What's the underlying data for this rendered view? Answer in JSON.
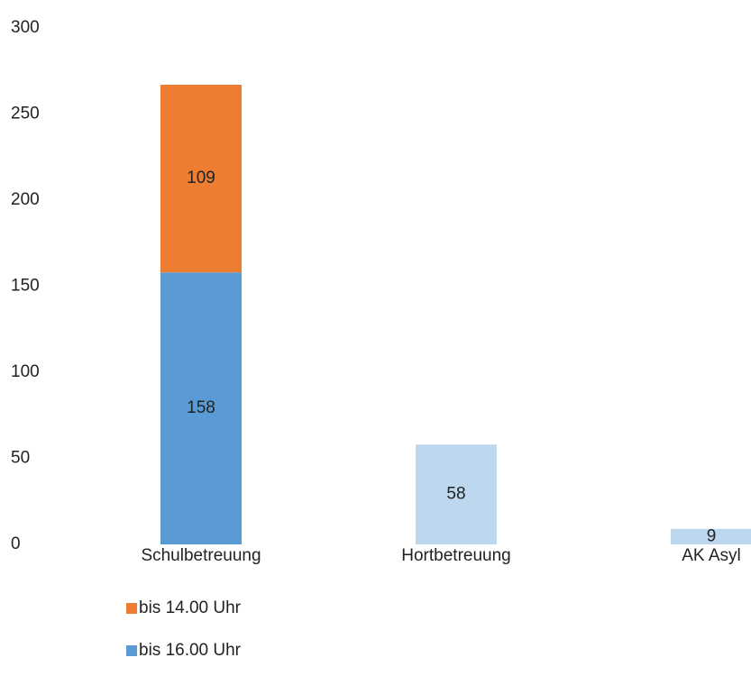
{
  "chart_data": {
    "type": "stacked_bar",
    "categories": [
      "Schulbetreuung",
      "Hortbetreuung",
      "AK Asyl"
    ],
    "series": [
      {
        "name": "bis 16.00 Uhr",
        "color": "#5b9bd5",
        "values": [
          158,
          null,
          null
        ]
      },
      {
        "name": "bis 14.00 Uhr",
        "color": "#ed7d31",
        "values": [
          109,
          null,
          null
        ]
      },
      {
        "color": "#bdd7ee",
        "values": [
          null,
          58,
          9
        ]
      }
    ],
    "ylim": [
      0,
      300
    ],
    "yticks": [
      0,
      50,
      100,
      150,
      200,
      250,
      300
    ],
    "grid": false,
    "data_labels": true,
    "legend": "bottom-left"
  }
}
